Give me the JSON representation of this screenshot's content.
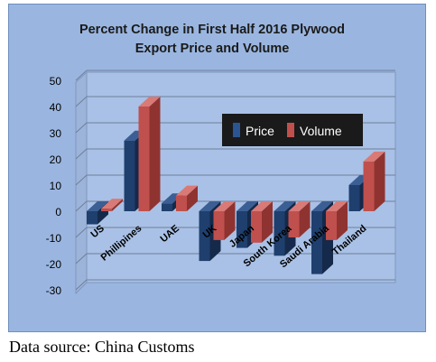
{
  "chart_data": {
    "type": "bar",
    "title_lines": [
      "Percent Change in First Half 2016 Plywood",
      "Export Price and Volume"
    ],
    "categories": [
      "US",
      "Phillipines",
      "UAE",
      "UK",
      "Japan",
      "South Korea",
      "Saudi Arabia",
      "Thailand"
    ],
    "series": [
      {
        "name": "Price",
        "values": [
          -5,
          27,
          3,
          -19,
          -14,
          -17,
          -24,
          10
        ]
      },
      {
        "name": "Volume",
        "values": [
          1,
          40,
          6,
          -11,
          -12,
          -10,
          -11,
          19
        ]
      }
    ],
    "ylim": [
      -30,
      50
    ],
    "yticks": [
      "50",
      "40",
      "30",
      "20",
      "10",
      "0",
      "-10",
      "-20",
      "-30"
    ],
    "legend_position": "inside-upper-right",
    "colors": {
      "price_front": "#1f3f6e",
      "price_side": "#15294a",
      "price_top": "#3b5e94",
      "volume_front": "#c0504d",
      "volume_side": "#8f3331",
      "volume_top": "#d97a77",
      "frame": "#9ab6e0",
      "plot": "#a9c1e6",
      "grid": "#6f7f99"
    }
  },
  "footer": {
    "source": "Data source: China Customs"
  }
}
